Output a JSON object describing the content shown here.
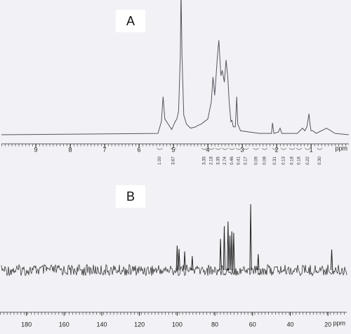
{
  "chart_data": [
    {
      "type": "line",
      "panel_label": "A",
      "x": [
        10,
        5.45,
        5.35,
        5.3,
        5.25,
        5.05,
        4.95,
        4.9,
        4.85,
        4.8,
        4.78,
        4.75,
        4.7,
        4.62,
        4.5,
        4.35,
        4.3,
        4.2,
        4.0,
        3.9,
        3.85,
        3.8,
        3.72,
        3.68,
        3.62,
        3.58,
        3.52,
        3.47,
        3.42,
        3.38,
        3.33,
        3.3,
        3.26,
        3.2,
        3.16,
        3.13,
        3.05,
        2.5,
        2.15,
        2.12,
        2.08,
        1.95,
        1.9,
        1.85,
        1.4,
        1.25,
        1.18,
        1.12,
        1.06,
        1.03,
        1.0,
        0.95,
        0.85,
        0.55,
        0.3,
        -0.1
      ],
      "series": [
        {
          "color": "#555560",
          "values": [
            0,
            1,
            10,
            29,
            12,
            4,
            10,
            12,
            18,
            60,
            110,
            60,
            15,
            8,
            5,
            6,
            7,
            8,
            12,
            25,
            44,
            30,
            60,
            72,
            45,
            49,
            40,
            57,
            44,
            25,
            10,
            11,
            6,
            6,
            29,
            8,
            3,
            1,
            1,
            9,
            1,
            2,
            5,
            1,
            1,
            5,
            3,
            6,
            16,
            8,
            3,
            3,
            1,
            5,
            1,
            0
          ]
        }
      ],
      "xlim": [
        10,
        -0.1
      ],
      "ylim": [
        0,
        100
      ],
      "xticks": [
        9,
        8,
        7,
        6,
        5,
        4,
        3,
        2,
        1
      ],
      "xlabel": "ppm",
      "integrals": {
        "x": [
          5.4,
          5.0,
          4.1,
          3.9,
          3.7,
          3.5,
          3.3,
          3.1,
          2.9,
          2.6,
          2.35,
          2.05,
          1.8,
          1.55,
          1.35,
          1.1,
          0.75
        ],
        "labels": [
          "1.00",
          "3.67",
          "3.35",
          "2.18",
          "3.35",
          "2.74",
          "0.46",
          "0.41",
          "0.17",
          "0.09",
          "0.08",
          "0.31",
          "0.13",
          "0.18",
          "0.16",
          "0.22",
          "0.30"
        ]
      }
    },
    {
      "type": "stick",
      "panel_label": "B",
      "x": [
        100,
        99,
        96,
        92,
        77,
        75,
        73,
        72,
        71,
        70,
        61,
        57,
        18
      ],
      "values": [
        37,
        32,
        28,
        21,
        47,
        66,
        73,
        52,
        58,
        56,
        99,
        24,
        31
      ],
      "color": "#222222",
      "xlim": [
        194,
        10
      ],
      "ylim": [
        0,
        100
      ],
      "xticks": [
        180,
        160,
        140,
        120,
        100,
        80,
        60,
        40,
        20
      ],
      "xlabel": "ppm"
    }
  ]
}
